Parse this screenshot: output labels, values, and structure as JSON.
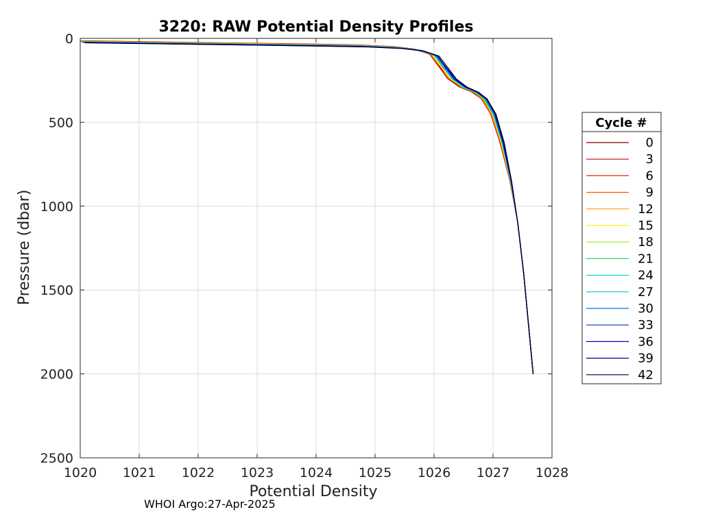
{
  "chart_data": {
    "type": "line",
    "title": "3220: RAW Potential Density Profiles",
    "xlabel": "Potential Density",
    "ylabel": "Pressure (dbar)",
    "xlim": [
      1020,
      1028
    ],
    "ylim": [
      0,
      2500
    ],
    "y_reversed": true,
    "grid": true,
    "x_ticks": [
      "1020",
      "1021",
      "1022",
      "1023",
      "1024",
      "1025",
      "1026",
      "1027",
      "1028"
    ],
    "y_ticks": [
      "0",
      "500",
      "1000",
      "1500",
      "2000",
      "2500"
    ],
    "legend": {
      "title": "Cycle #",
      "placement": "outside-right",
      "entries": [
        {
          "label": "0",
          "color": "#7f0000"
        },
        {
          "label": "3",
          "color": "#cc0000"
        },
        {
          "label": "6",
          "color": "#ff2200"
        },
        {
          "label": "9",
          "color": "#ff5500"
        },
        {
          "label": "12",
          "color": "#ff9900"
        },
        {
          "label": "15",
          "color": "#ffee00"
        },
        {
          "label": "18",
          "color": "#99ee22"
        },
        {
          "label": "21",
          "color": "#33dd44"
        },
        {
          "label": "24",
          "color": "#00ddcc"
        },
        {
          "label": "27",
          "color": "#00bbee"
        },
        {
          "label": "30",
          "color": "#0077dd"
        },
        {
          "label": "33",
          "color": "#0033bb"
        },
        {
          "label": "36",
          "color": "#0000dd"
        },
        {
          "label": "39",
          "color": "#000088"
        },
        {
          "label": "42",
          "color": "#000030"
        }
      ]
    },
    "profile_base": {
      "x": [
        1020.0,
        1021.0,
        1022.0,
        1023.0,
        1024.0,
        1024.8,
        1025.4,
        1025.75,
        1026.0,
        1026.15,
        1026.3,
        1026.5,
        1026.7,
        1026.85,
        1027.0,
        1027.15,
        1027.3,
        1027.42,
        1027.52,
        1027.6,
        1027.68
      ],
      "y": [
        20,
        25,
        30,
        35,
        40,
        45,
        55,
        70,
        100,
        170,
        240,
        290,
        320,
        360,
        450,
        620,
        850,
        1100,
        1400,
        1700,
        2000
      ]
    },
    "annotation": "WHOI Argo:27-Apr-2025"
  }
}
